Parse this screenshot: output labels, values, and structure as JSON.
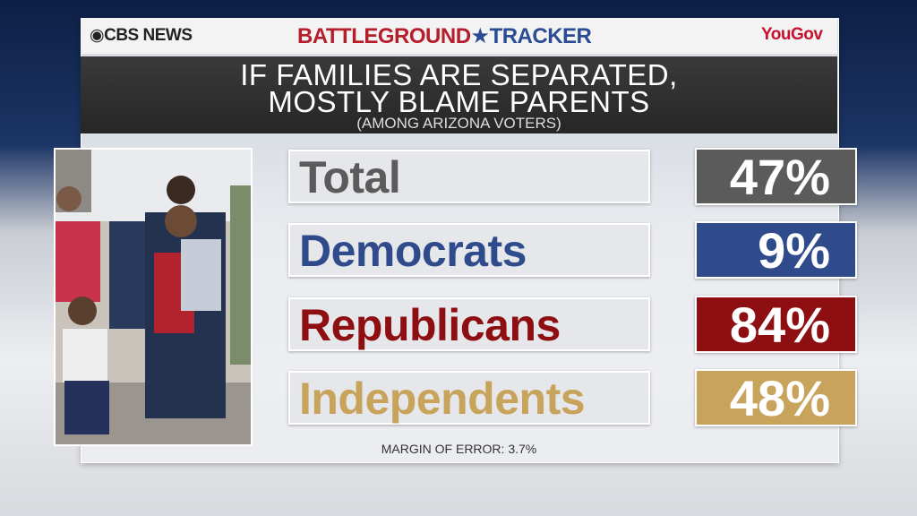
{
  "header": {
    "network": "CBS NEWS",
    "tracker_left": "BATTLEGROUND",
    "tracker_right": "TRACKER",
    "pollster": "YouGov"
  },
  "title": {
    "lines": [
      "IF FAMILIES ARE SEPARATED,",
      "MOSTLY BLAME PARENTS"
    ],
    "subtitle": "(AMONG ARIZONA VOTERS)"
  },
  "rows": [
    {
      "label": "Total",
      "value": "47%",
      "color": "#5b5b5b"
    },
    {
      "label": "Democrats",
      "value": "9%",
      "color": "#2f4b8c"
    },
    {
      "label": "Republicans",
      "value": "84%",
      "color": "#8e0f12"
    },
    {
      "label": "Independents",
      "value": "48%",
      "color": "#c7a35c"
    }
  ],
  "footer": "MARGIN OF ERROR: 3.7%"
}
